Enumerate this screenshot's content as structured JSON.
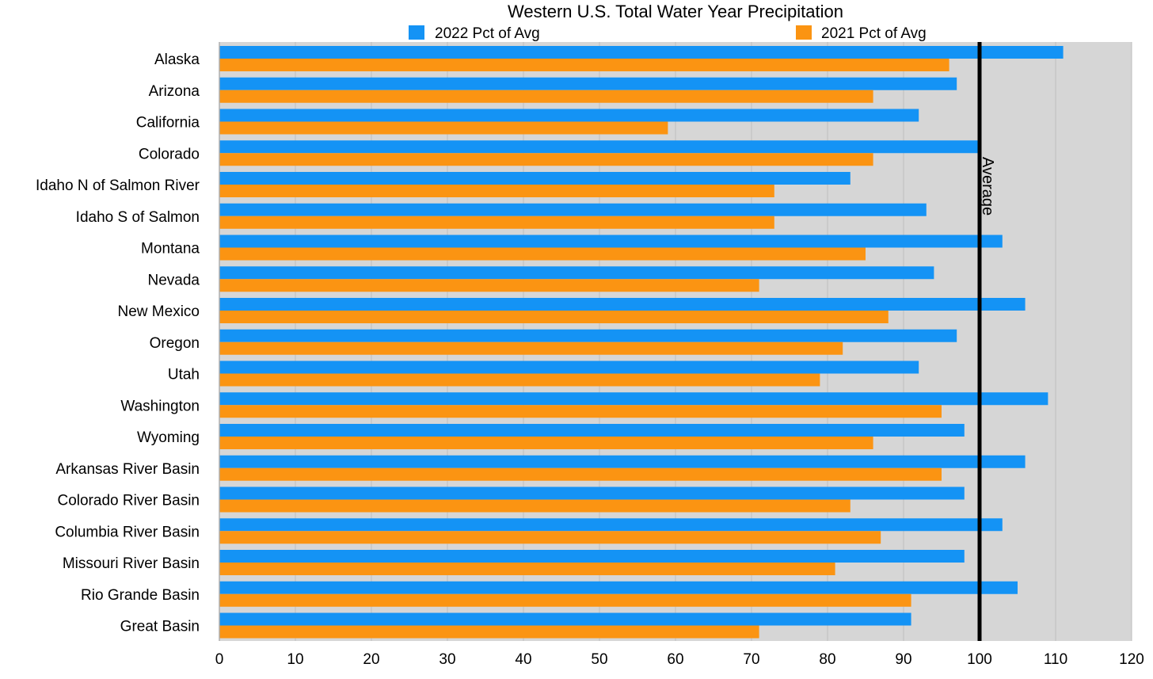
{
  "chart_data": {
    "type": "bar",
    "orientation": "horizontal",
    "title": "Western U.S. Total Water Year Precipitation",
    "categories": [
      "Alaska",
      "Arizona",
      "California",
      "Colorado",
      "Idaho N of Salmon River",
      "Idaho S of Salmon",
      "Montana",
      "Nevada",
      "New Mexico",
      "Oregon",
      "Utah",
      "Washington",
      "Wyoming",
      "Arkansas River Basin",
      "Colorado River Basin",
      "Columbia River Basin",
      "Missouri River Basin",
      "Rio Grande Basin",
      "Great Basin"
    ],
    "series": [
      {
        "name": "2022 Pct of Avg",
        "color": "#1493f5",
        "values": [
          111,
          97,
          92,
          100,
          83,
          93,
          103,
          94,
          106,
          97,
          92,
          109,
          98,
          106,
          98,
          103,
          98,
          105,
          91
        ]
      },
      {
        "name": "2021 Pct of Avg",
        "color": "#fb9412",
        "values": [
          96,
          86,
          59,
          86,
          73,
          73,
          85,
          71,
          88,
          82,
          79,
          95,
          86,
          95,
          83,
          87,
          81,
          91,
          71
        ]
      }
    ],
    "xlim": [
      0,
      120
    ],
    "xticks": [
      0,
      10,
      20,
      30,
      40,
      50,
      60,
      70,
      80,
      90,
      100,
      110,
      120
    ],
    "xlabel": "",
    "ylabel": "",
    "reference_line": {
      "value": 100,
      "label": "Average",
      "color": "#000000"
    },
    "grid": true,
    "plot_background": "#d6d6d6",
    "legend_position": "top"
  }
}
